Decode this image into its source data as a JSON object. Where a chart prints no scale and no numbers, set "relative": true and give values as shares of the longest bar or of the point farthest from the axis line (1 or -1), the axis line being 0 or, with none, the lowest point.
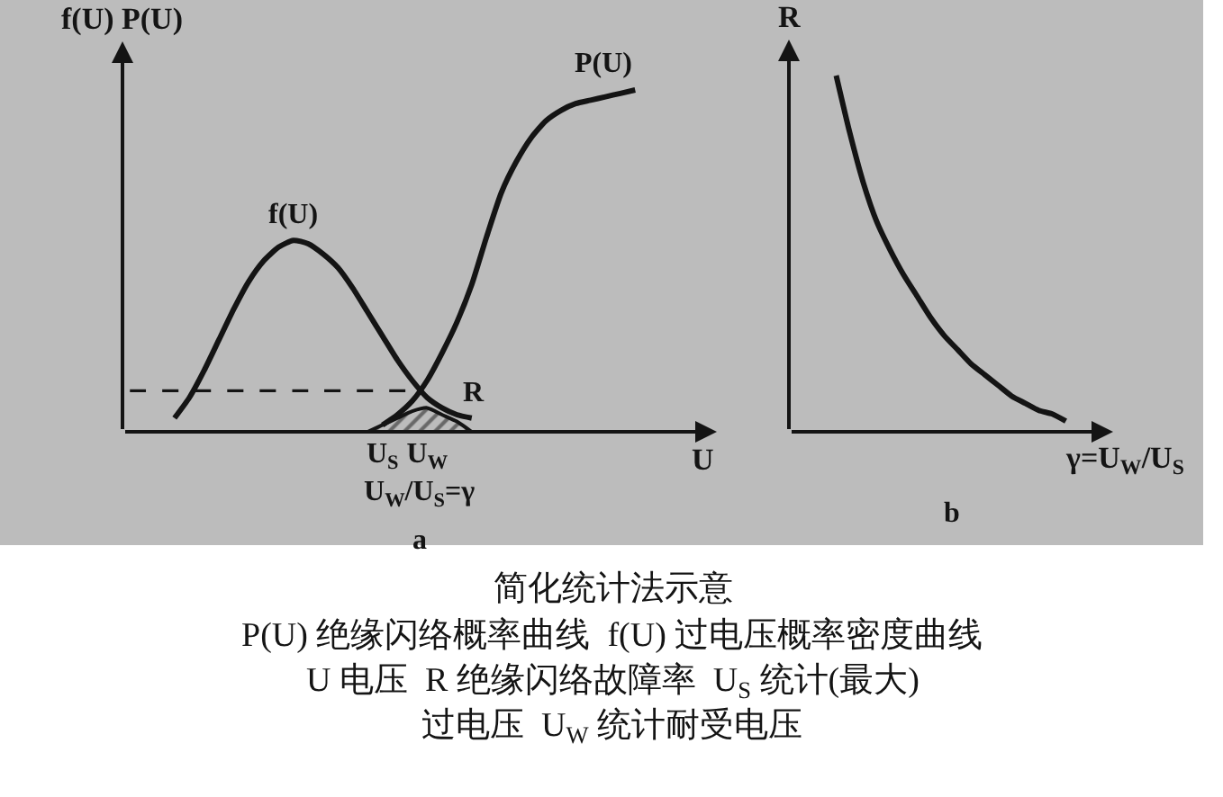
{
  "chart_data": [
    {
      "type": "line",
      "relative": true,
      "title": "a",
      "xlabel": "U",
      "ylabel": "f(U) P(U)",
      "categories": [
        null,
        null,
        null,
        null,
        null,
        null,
        null,
        null,
        null,
        null,
        null,
        null,
        null,
        null,
        null,
        null,
        null,
        "U$_{S}$",
        null,
        null,
        "U$_{W}$",
        null,
        null,
        null,
        null,
        null,
        null,
        null,
        null,
        null,
        null,
        null,
        null,
        null,
        null,
        null,
        null,
        null,
        null,
        null
      ],
      "series": [
        {
          "name": "f(U)",
          "color": "#141414",
          "values": [
            null,
            null,
            null,
            0.04,
            0.1,
            0.18,
            0.27,
            0.36,
            0.44,
            0.5,
            0.54,
            0.56,
            0.55,
            0.52,
            0.48,
            0.42,
            0.35,
            0.28,
            0.21,
            0.15,
            0.1,
            0.07,
            0.05,
            0.04,
            null,
            null,
            null,
            null,
            null,
            null,
            null,
            null,
            null,
            null,
            null,
            null,
            null,
            null,
            null,
            null
          ]
        },
        {
          "name": "P(U)",
          "color": "#141414",
          "values": [
            null,
            null,
            null,
            null,
            null,
            null,
            null,
            null,
            null,
            null,
            null,
            null,
            null,
            null,
            null,
            null,
            null,
            0.02,
            0.05,
            0.09,
            0.15,
            0.23,
            0.32,
            0.43,
            0.57,
            0.7,
            0.79,
            0.86,
            0.91,
            0.94,
            0.96,
            0.97,
            0.98,
            0.99,
            1.0,
            null,
            null,
            null,
            null,
            null
          ]
        },
        {
          "type": "area",
          "name": "R",
          "color": "#141414",
          "values": [
            null,
            null,
            null,
            null,
            null,
            null,
            null,
            null,
            null,
            null,
            null,
            null,
            null,
            null,
            null,
            null,
            0,
            0.02,
            0.04,
            0.06,
            0.07,
            0.05,
            0.03,
            0,
            null,
            null,
            null,
            null,
            null,
            null,
            null,
            null,
            null,
            null,
            null,
            null,
            null,
            null,
            null,
            null
          ]
        },
        {
          "color": "#141414",
          "line_style": "dashed",
          "values": [
            0.12,
            0.12,
            0.12,
            0.12,
            0.12,
            0.12,
            0.12,
            0.12,
            0.12,
            0.12,
            0.12,
            0.12,
            0.12,
            0.12,
            0.12,
            0.12,
            0.12,
            0.12,
            0.12,
            0.12,
            null,
            null,
            null,
            null,
            null,
            null,
            null,
            null,
            null,
            null,
            null,
            null,
            null,
            null,
            null,
            null,
            null,
            null,
            null,
            null
          ]
        }
      ],
      "annotations": [
        "U$_{W}$/U$_{S}$=γ"
      ]
    },
    {
      "type": "line",
      "relative": true,
      "title": "b",
      "xlabel": "γ=U$_{W}$/U$_{S}$",
      "ylabel": "R",
      "categories": [
        null,
        null,
        null,
        null,
        null,
        null,
        null,
        null,
        null,
        null,
        null,
        null,
        null,
        null,
        null,
        null,
        null,
        null,
        null,
        null,
        null,
        null,
        null,
        null
      ],
      "series": [
        {
          "color": "#141414",
          "values": [
            null,
            null,
            null,
            1.0,
            0.84,
            0.7,
            0.59,
            0.51,
            0.44,
            0.38,
            0.32,
            0.27,
            0.23,
            0.19,
            0.16,
            0.13,
            0.1,
            0.08,
            0.06,
            0.05,
            0.03,
            null,
            null,
            null
          ]
        }
      ]
    },
    {
      "type": "other",
      "title": "简化统计法示意",
      "annotations": [
        "P(U) 绝缘闪络概率曲线  f(U) 过电压概率密度曲线",
        "U 电压  R 绝缘闪络故障率  U$_{S}$ 统计(最大)",
        "过电压  U$_{W}$ 统计耐受电压"
      ]
    }
  ]
}
